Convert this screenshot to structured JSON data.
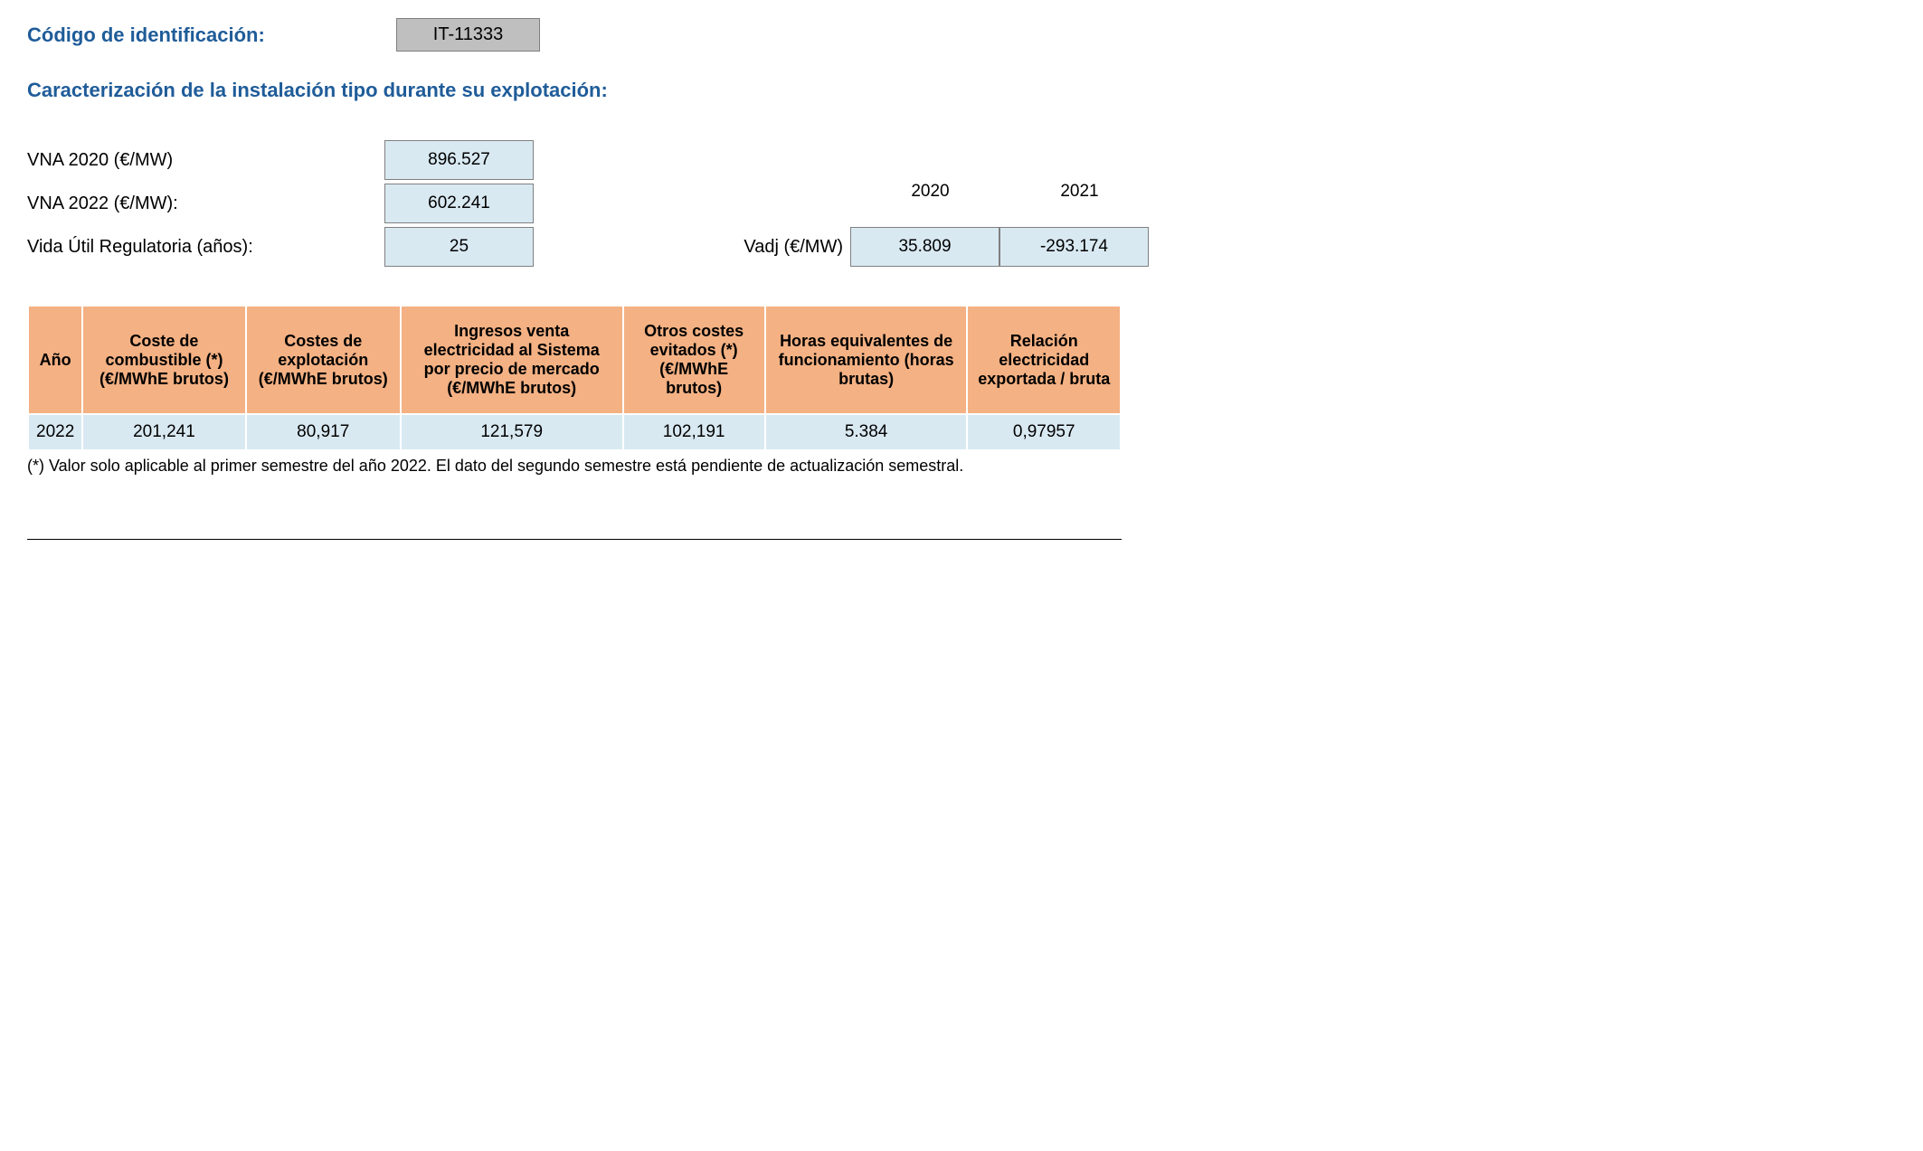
{
  "header": {
    "id_label": "Código de identificación:",
    "id_value": "IT-11333"
  },
  "section_title": "Caracterización de la instalación tipo durante su explotación:",
  "params": {
    "vna2020_label": "VNA 2020 (€/MW)",
    "vna2020_value": "896.527",
    "vna2022_label": "VNA 2022 (€/MW):",
    "vna2022_value": "602.241",
    "vida_label": "Vida Útil Regulatoria (años):",
    "vida_value": "25"
  },
  "vadj": {
    "label": "Vadj (€/MW)",
    "year1_label": "2020",
    "year2_label": "2021",
    "year1_value": "35.809",
    "year2_value": "-293.174"
  },
  "table": {
    "columns": [
      "Año",
      "Coste de combustible (*) (€/MWhE brutos)",
      "Costes de explotación (€/MWhE brutos)",
      "Ingresos venta electricidad al Sistema por precio de mercado (€/MWhE brutos)",
      "Otros costes evitados (*) (€/MWhE brutos)",
      "Horas equivalentes de funcionamiento (horas brutas)",
      "Relación electricidad exportada / bruta"
    ],
    "row": {
      "c0": "2022",
      "c1": "201,241",
      "c2": "80,917",
      "c3": "121,579",
      "c4": "102,191",
      "c5": "5.384",
      "c6": "0,97957"
    },
    "header_bg": "#f4b183",
    "row_bg": "#d9e9f2"
  },
  "footnote": "(*) Valor solo aplicable al primer semestre del año 2022. El dato del segundo semestre está pendiente de actualización semestral."
}
